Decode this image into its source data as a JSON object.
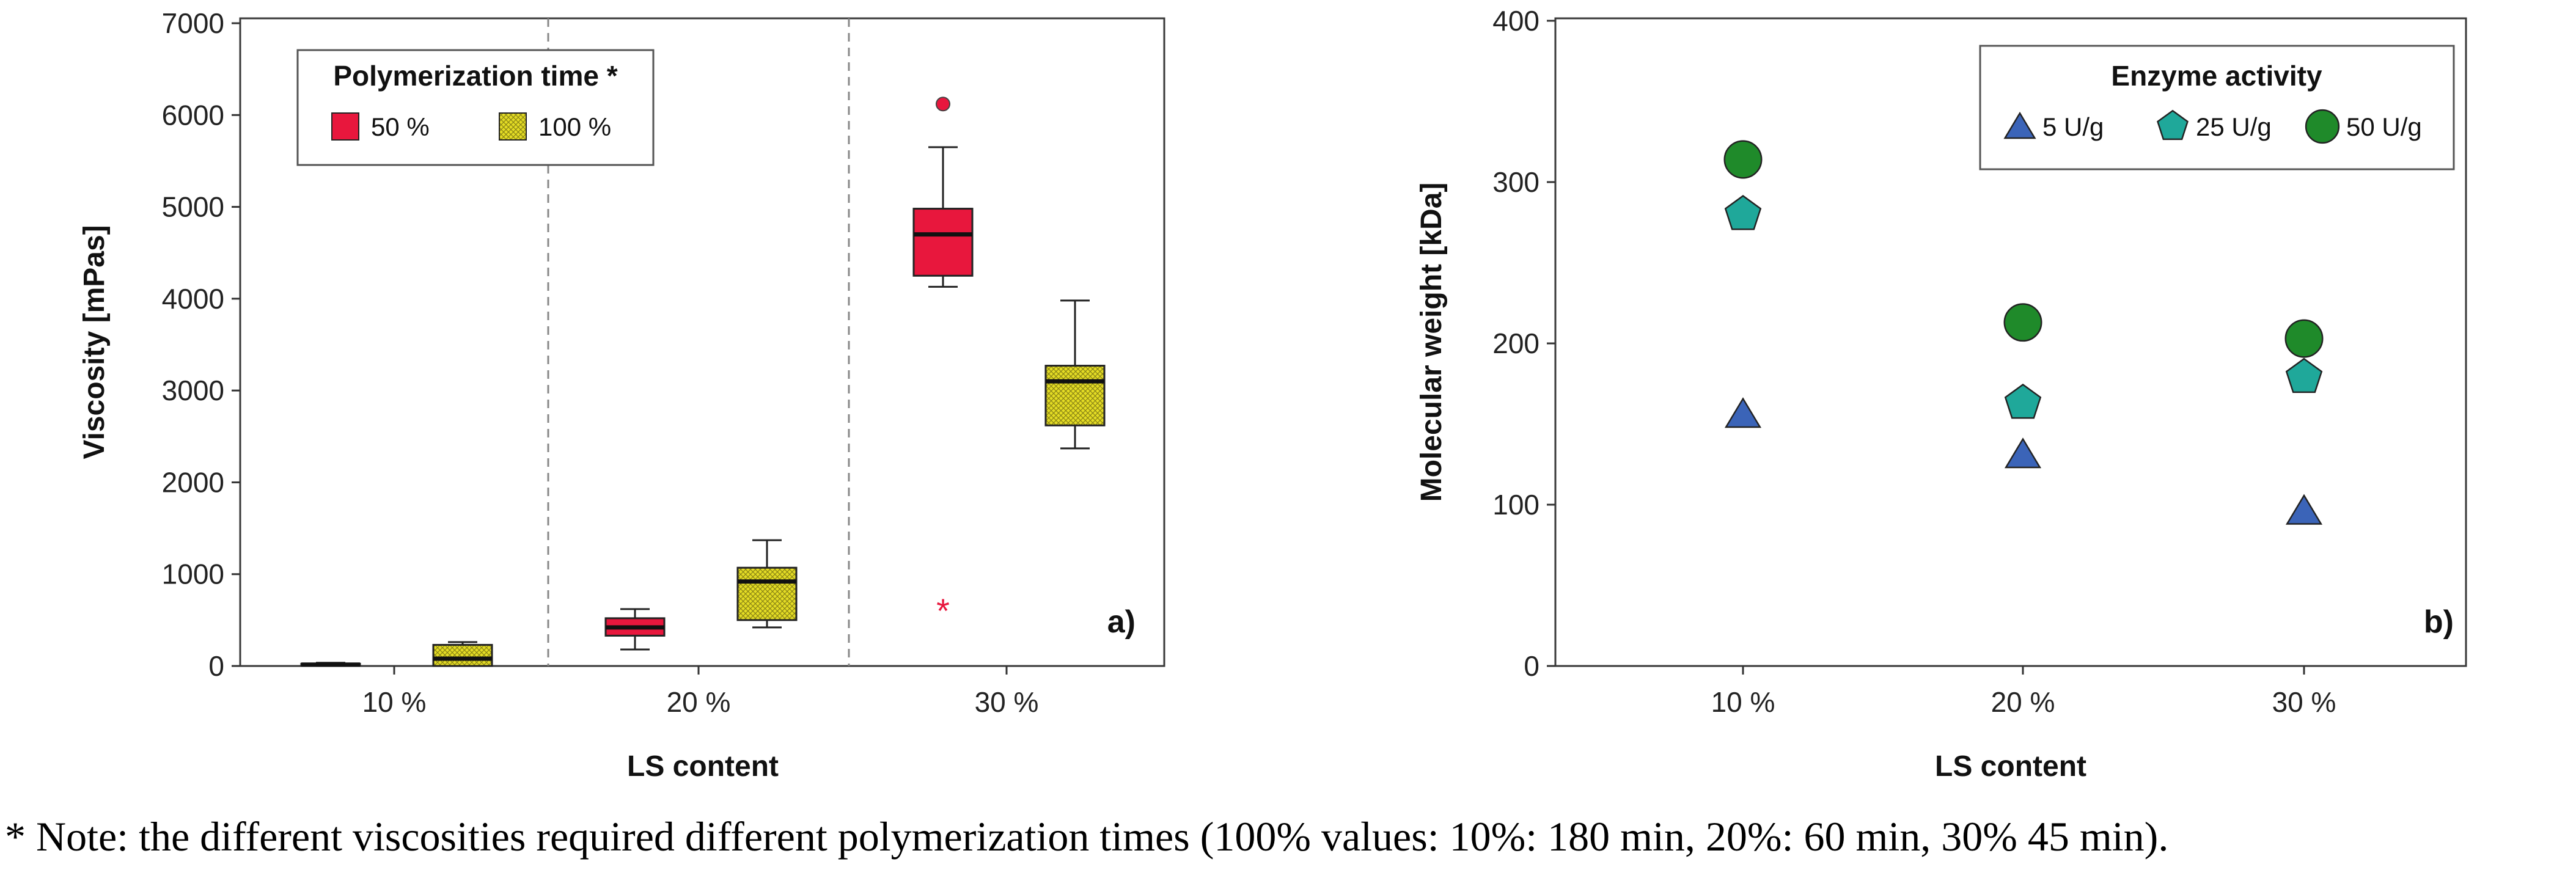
{
  "colors": {
    "red_fill": "#e8173d",
    "yellow_fill": "#e4dc24",
    "triangle_fill": "#3b64b8",
    "pentagon_fill": "#1fa89a",
    "circle_fill": "#1f8a2a",
    "frame": "#3a3a3a",
    "divider": "#888888"
  },
  "chart_data": [
    {
      "type": "box",
      "panel_label": "a)",
      "xlabel": "LS content",
      "ylabel": "Viscosity [mPas]",
      "ylim": [
        0,
        7000
      ],
      "yticks": [
        "0",
        "1000",
        "2000",
        "3000",
        "4000",
        "5000",
        "6000",
        "7000"
      ],
      "ytick_values": [
        0,
        1000,
        2000,
        3000,
        4000,
        5000,
        6000,
        7000
      ],
      "categories": [
        "10 %",
        "20 %",
        "30 %"
      ],
      "legend": {
        "title": "Polymerization time *",
        "placement": "top-left"
      },
      "series": [
        {
          "name": "50 %",
          "fill": "red",
          "boxes": [
            {
              "whisker_low": 0,
              "q1": 5,
              "median": 15,
              "q3": 25,
              "whisker_high": 35,
              "outliers": []
            },
            {
              "whisker_low": 180,
              "q1": 330,
              "median": 420,
              "q3": 520,
              "whisker_high": 620,
              "outliers": []
            },
            {
              "whisker_low": 4130,
              "q1": 4250,
              "median": 4700,
              "q3": 4980,
              "whisker_high": 5650,
              "outliers": [
                6120
              ],
              "extremes": [
                620
              ]
            }
          ]
        },
        {
          "name": "100 %",
          "fill": "yellow",
          "boxes": [
            {
              "whisker_low": 0,
              "q1": 0,
              "median": 80,
              "q3": 230,
              "whisker_high": 260,
              "outliers": []
            },
            {
              "whisker_low": 420,
              "q1": 500,
              "median": 920,
              "q3": 1070,
              "whisker_high": 1370,
              "outliers": []
            },
            {
              "whisker_low": 2370,
              "q1": 2620,
              "median": 3100,
              "q3": 3270,
              "whisker_high": 3980,
              "outliers": []
            }
          ]
        }
      ]
    },
    {
      "type": "scatter",
      "panel_label": "b)",
      "xlabel": "LS content",
      "ylabel": "Molecular weight [kDa]",
      "ylim": [
        0,
        400
      ],
      "yticks": [
        "0",
        "100",
        "200",
        "300",
        "400"
      ],
      "ytick_values": [
        0,
        100,
        200,
        300,
        400
      ],
      "categories": [
        "10 %",
        "20 %",
        "30 %"
      ],
      "legend": {
        "title": "Enzyme activity",
        "placement": "top-right"
      },
      "series": [
        {
          "name": "5 U/g",
          "marker": "triangle",
          "values": [
            155,
            130,
            95
          ]
        },
        {
          "name": "25 U/g",
          "marker": "pentagon",
          "values": [
            280,
            163,
            179
          ]
        },
        {
          "name": "50 U/g",
          "marker": "circle",
          "values": [
            314,
            213,
            203
          ]
        }
      ]
    }
  ],
  "note": "* Note: the different viscosities required different polymerization times (100% values: 10%: 180 min, 20%: 60 min, 30% 45 min)."
}
